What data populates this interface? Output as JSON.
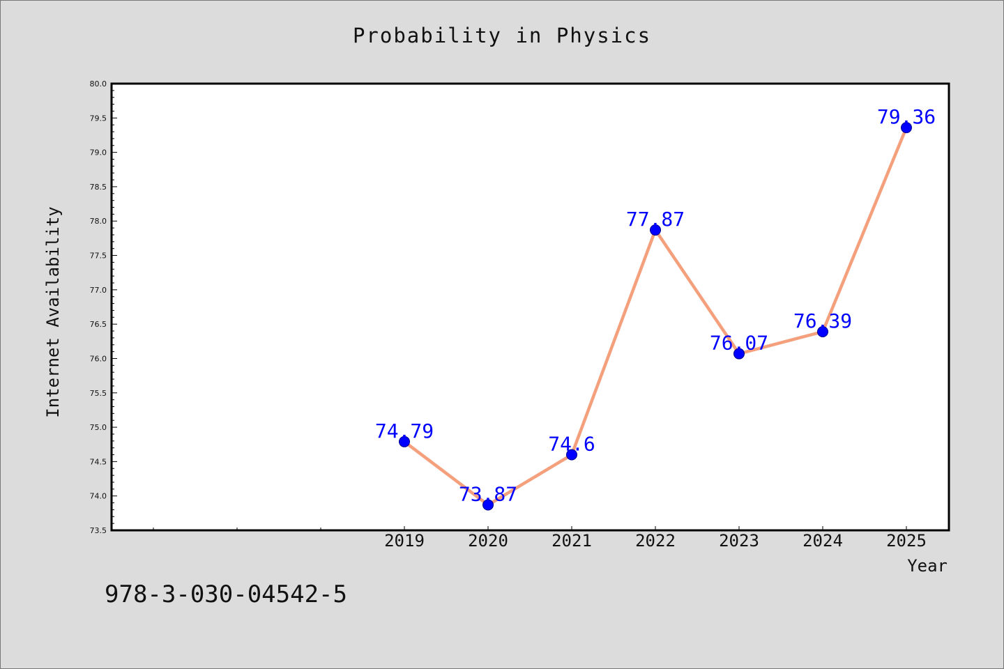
{
  "chart_title": "Probability in Physics",
  "footer_text": "978-3-030-04542-5",
  "chart_data": {
    "type": "line",
    "title": "Probability in Physics",
    "xlabel": "Year",
    "ylabel": "Internet Availability",
    "x": [
      "2019",
      "2020",
      "2021",
      "2022",
      "2023",
      "2024",
      "2025"
    ],
    "series": [
      {
        "values": [
          74.79,
          73.87,
          74.6,
          77.87,
          76.07,
          76.39,
          79.36
        ]
      }
    ],
    "data_labels": [
      "74.79",
      "73.87",
      "74.6",
      "77.87",
      "76.07",
      "76.39",
      "79.36"
    ],
    "ylim": [
      73.5,
      80.0
    ],
    "ytick_labels": [
      "73.5",
      "74.0",
      "74.5",
      "75.0",
      "75.5",
      "76.0",
      "76.5",
      "77.0",
      "77.5",
      "78.0",
      "78.5",
      "79.0",
      "79.5",
      "80.0"
    ],
    "line_color": "#f4a07c",
    "marker_color": "#0000ff",
    "label_color": "#0000ff",
    "plot_background": "#ffffff",
    "grid": false,
    "legend": "none"
  }
}
